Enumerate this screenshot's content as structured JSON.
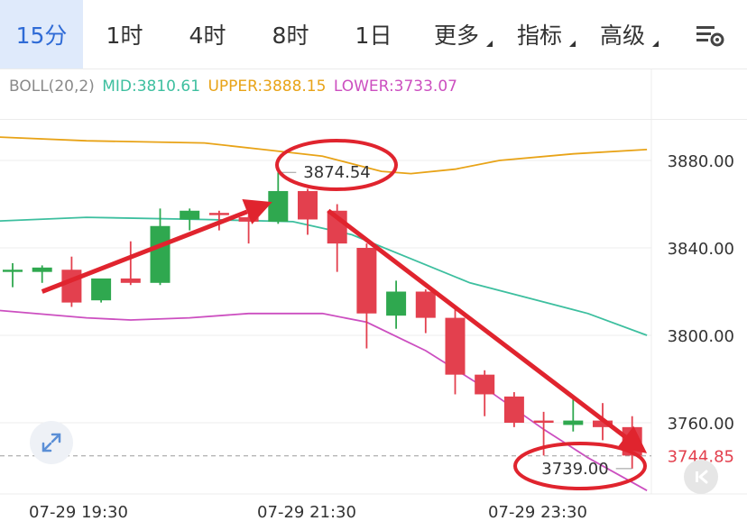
{
  "tabs": [
    {
      "label": "15分",
      "active": true,
      "has_menu": false
    },
    {
      "label": "1时",
      "active": false,
      "has_menu": false
    },
    {
      "label": "4时",
      "active": false,
      "has_menu": false
    },
    {
      "label": "8时",
      "active": false,
      "has_menu": false
    },
    {
      "label": "1日",
      "active": false,
      "has_menu": false
    },
    {
      "label": "更多",
      "active": false,
      "has_menu": true
    },
    {
      "label": "指标",
      "active": false,
      "has_menu": true
    },
    {
      "label": "高级",
      "active": false,
      "has_menu": true
    }
  ],
  "settings_icon": "chart-settings-icon",
  "indicator": {
    "name": "BOLL(20,2)",
    "mid": {
      "label": "MID:3810.61",
      "color": "#3dbf9f"
    },
    "upper": {
      "label": "UPPER:3888.15",
      "color": "#e8a317"
    },
    "lower": {
      "label": "LOWER:3733.07",
      "color": "#cc4fc0"
    }
  },
  "chart_data": {
    "type": "candlestick",
    "y_ticks": [
      "3880.00",
      "3840.00",
      "3800.00",
      "3760.00"
    ],
    "x_ticks": [
      "07-29 19:30",
      "07-29 21:30",
      "07-29 23:30"
    ],
    "current_price": "3744.85",
    "annotations": {
      "high_label": "3874.54",
      "low_label": "3739.00"
    },
    "colors": {
      "up": "#2fa84f",
      "down": "#e3404e"
    },
    "candles": [
      {
        "o": 3829.0,
        "h": 3833.0,
        "l": 3822.0,
        "c": 3830.0
      },
      {
        "o": 3829.0,
        "h": 3832.0,
        "l": 3824.0,
        "c": 3831.0
      },
      {
        "o": 3830.0,
        "h": 3836.0,
        "l": 3813.0,
        "c": 3815.0
      },
      {
        "o": 3816.0,
        "h": 3825.0,
        "l": 3815.0,
        "c": 3826.0
      },
      {
        "o": 3826.0,
        "h": 3843.0,
        "l": 3823.0,
        "c": 3824.0
      },
      {
        "o": 3824.0,
        "h": 3858.0,
        "l": 3823.0,
        "c": 3850.0
      },
      {
        "o": 3853.0,
        "h": 3858.0,
        "l": 3848.0,
        "c": 3857.0
      },
      {
        "o": 3856.0,
        "h": 3857.0,
        "l": 3848.0,
        "c": 3855.0
      },
      {
        "o": 3854.0,
        "h": 3855.0,
        "l": 3842.0,
        "c": 3852.0
      },
      {
        "o": 3852.0,
        "h": 3874.54,
        "l": 3851.0,
        "c": 3866.0
      },
      {
        "o": 3866.0,
        "h": 3867.0,
        "l": 3846.0,
        "c": 3853.0
      },
      {
        "o": 3857.0,
        "h": 3860.0,
        "l": 3829.0,
        "c": 3842.0
      },
      {
        "o": 3840.0,
        "h": 3842.0,
        "l": 3794.0,
        "c": 3810.0
      },
      {
        "o": 3809.0,
        "h": 3825.0,
        "l": 3803.0,
        "c": 3820.0
      },
      {
        "o": 3820.0,
        "h": 3821.0,
        "l": 3801.0,
        "c": 3808.0
      },
      {
        "o": 3808.0,
        "h": 3812.0,
        "l": 3773.0,
        "c": 3782.0
      },
      {
        "o": 3782.0,
        "h": 3784.0,
        "l": 3763.0,
        "c": 3773.0
      },
      {
        "o": 3772.0,
        "h": 3774.0,
        "l": 3758.0,
        "c": 3760.0
      },
      {
        "o": 3761.0,
        "h": 3765.0,
        "l": 3745.0,
        "c": 3760.0
      },
      {
        "o": 3759.0,
        "h": 3771.0,
        "l": 3756.0,
        "c": 3761.0
      },
      {
        "o": 3761.0,
        "h": 3769.0,
        "l": 3752.0,
        "c": 3758.0
      },
      {
        "o": 3758.0,
        "h": 3763.0,
        "l": 3739.0,
        "c": 3745.0
      }
    ],
    "boll_upper": [
      [
        -1,
        3891.0
      ],
      [
        2.5,
        3889.0
      ],
      [
        6.5,
        3888.0
      ],
      [
        8.5,
        3885.0
      ],
      [
        10.5,
        3882.0
      ],
      [
        12.5,
        3875.0
      ],
      [
        13.5,
        3874.0
      ],
      [
        15,
        3876.0
      ],
      [
        16.5,
        3880.0
      ],
      [
        19,
        3883.0
      ],
      [
        21.5,
        3885.0
      ]
    ],
    "boll_mid": [
      [
        -1,
        3852.0
      ],
      [
        2.5,
        3854.0
      ],
      [
        6.5,
        3853.0
      ],
      [
        9.5,
        3852.0
      ],
      [
        11.5,
        3846.0
      ],
      [
        13.5,
        3835.0
      ],
      [
        15.5,
        3824.0
      ],
      [
        17.5,
        3817.0
      ],
      [
        19.5,
        3810.0
      ],
      [
        21.5,
        3800.0
      ]
    ],
    "boll_lower": [
      [
        -1,
        3812.0
      ],
      [
        2.5,
        3808.0
      ],
      [
        4,
        3807.0
      ],
      [
        6,
        3808.0
      ],
      [
        8,
        3810.0
      ],
      [
        10.5,
        3810.0
      ],
      [
        12,
        3806.0
      ],
      [
        14,
        3793.0
      ],
      [
        16,
        3776.0
      ],
      [
        18,
        3757.0
      ],
      [
        19.5,
        3744.0
      ],
      [
        21.5,
        3729.0
      ]
    ],
    "arrows": [
      {
        "from": [
          1.0,
          3820.0
        ],
        "to": [
          8.8,
          3861.0
        ]
      },
      {
        "from": [
          10.7,
          3857.0
        ],
        "to": [
          21.5,
          3746.0
        ]
      }
    ]
  }
}
